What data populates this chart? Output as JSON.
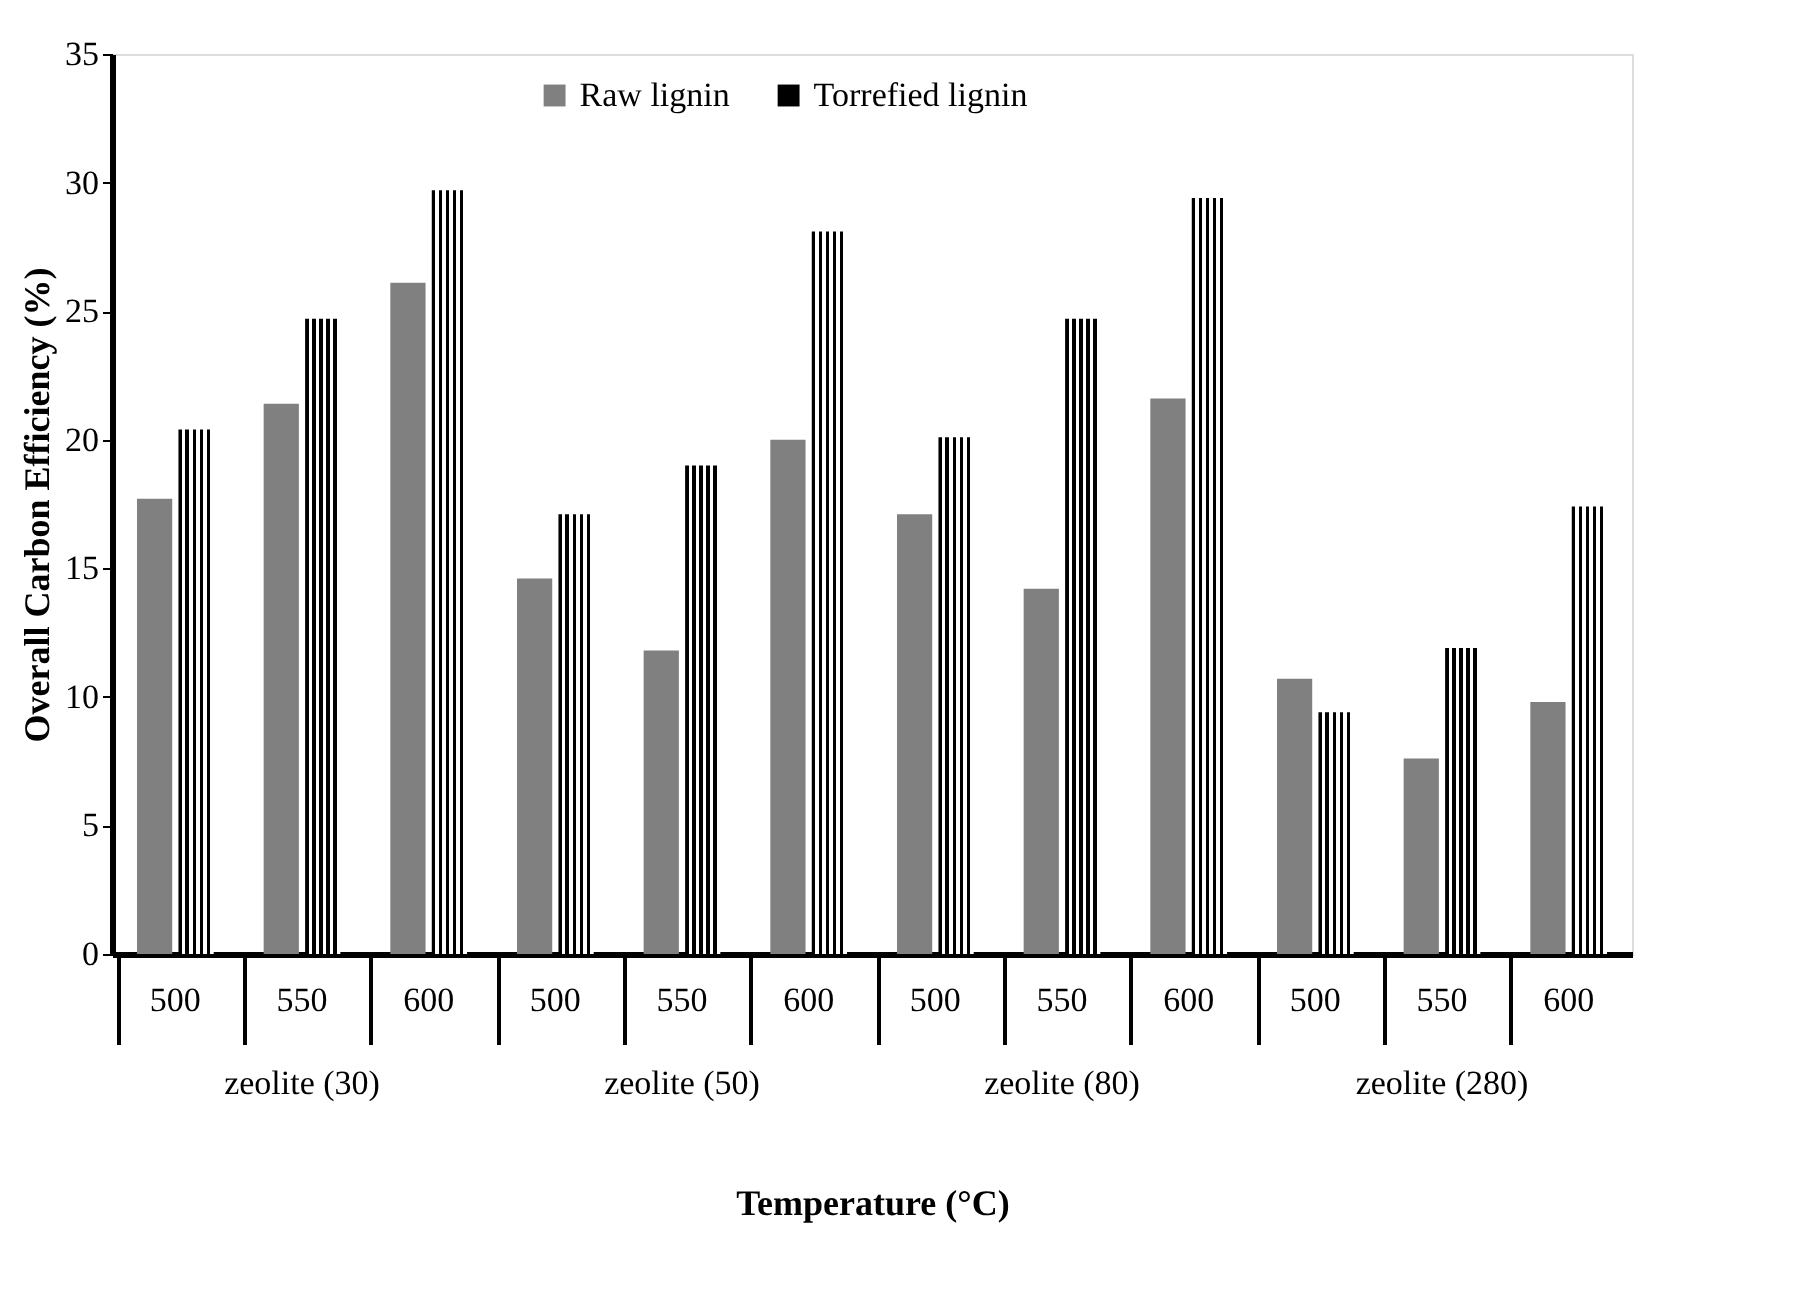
{
  "chart_data": {
    "type": "bar",
    "xlabel": "Temperature (°C)",
    "ylabel": "Overall Carbon Efficiency (%)",
    "categories": [
      "500",
      "550",
      "600",
      "500",
      "550",
      "600",
      "500",
      "550",
      "600",
      "500",
      "550",
      "600"
    ],
    "annotations": [
      "zeolite (30)",
      "zeolite (50)",
      "zeolite (80)",
      "zeolite (280)"
    ],
    "series": [
      {
        "name": "Raw lignin",
        "color": "#808080",
        "values": [
          17.7,
          21.4,
          26.1,
          14.6,
          11.8,
          20.0,
          17.1,
          14.2,
          21.6,
          10.7,
          7.6,
          9.8
        ]
      },
      {
        "name": "Torrefied lignin",
        "color": "#000000",
        "values": [
          20.4,
          24.7,
          29.7,
          17.1,
          19.0,
          28.1,
          20.1,
          24.7,
          29.4,
          9.4,
          11.9,
          17.4
        ]
      }
    ],
    "ylim": [
      0,
      35
    ],
    "yticks": [
      0,
      5,
      10,
      15,
      20,
      25,
      30,
      35
    ],
    "legend": "top",
    "grid": false
  }
}
